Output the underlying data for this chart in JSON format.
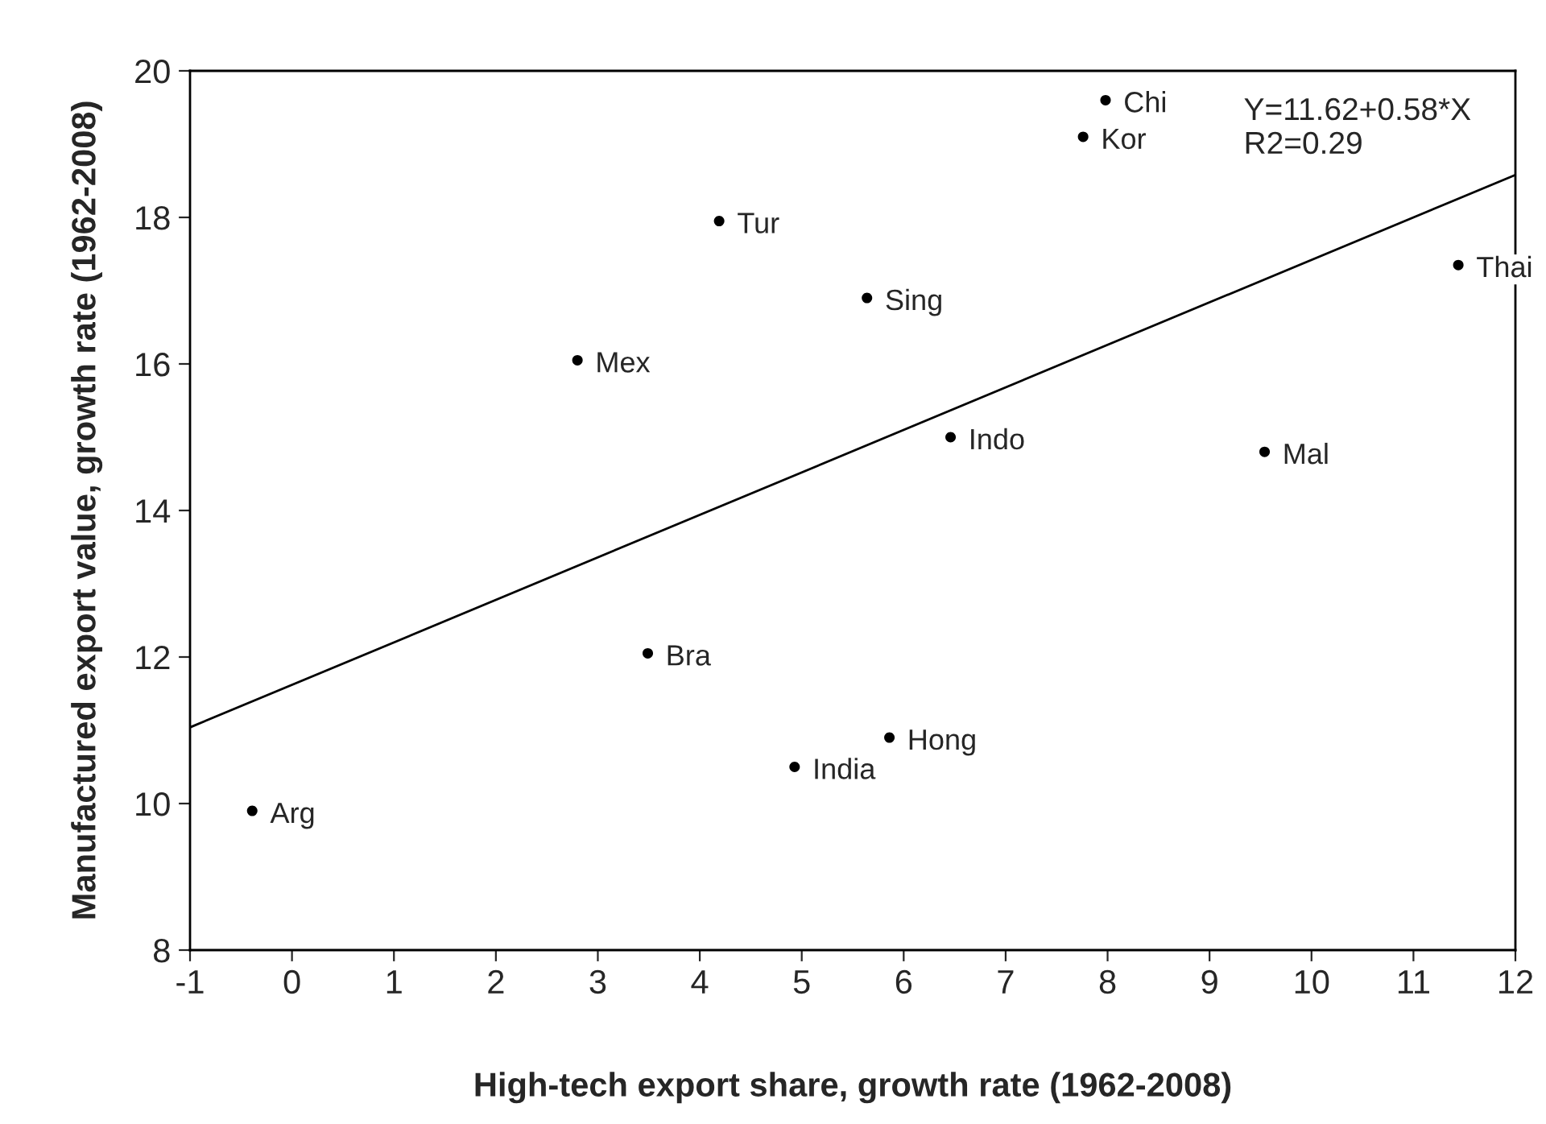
{
  "chart_data": {
    "type": "scatter",
    "xlabel": "High-tech export share, growth rate (1962-2008)",
    "ylabel": "Manufactured export value, growth rate (1962-2008)",
    "xlim": [
      -1,
      12
    ],
    "xticks": [
      -1,
      0,
      1,
      2,
      3,
      4,
      5,
      6,
      7,
      8,
      9,
      10,
      11,
      12
    ],
    "ylim": [
      8,
      20
    ],
    "yticks": [
      8,
      10,
      12,
      14,
      16,
      18,
      20
    ],
    "grid": false,
    "marker": "circle",
    "series": [
      {
        "color": "#000000",
        "x": [
          -0.39,
          3.49,
          4.93,
          5.86,
          2.8,
          4.19,
          5.64,
          6.46,
          7.98,
          7.76,
          9.54,
          11.44
        ],
        "values": [
          9.9,
          12.05,
          10.5,
          10.9,
          16.05,
          17.95,
          16.9,
          15.0,
          19.6,
          19.1,
          14.8,
          17.35
        ]
      },
      {
        "type": "line",
        "color": "#000000",
        "line_style": "solid",
        "marker": "none",
        "x": [
          -1,
          12
        ],
        "values": [
          11.04,
          18.58
        ]
      }
    ],
    "annotations": [
      {
        "text": "Arg",
        "x": -0.39,
        "y": 9.9
      },
      {
        "text": "Bra",
        "x": 3.49,
        "y": 12.05
      },
      {
        "text": "India",
        "x": 4.93,
        "y": 10.5
      },
      {
        "text": "Hong",
        "x": 5.86,
        "y": 10.9
      },
      {
        "text": "Mex",
        "x": 2.8,
        "y": 16.05
      },
      {
        "text": "Tur",
        "x": 4.19,
        "y": 17.95
      },
      {
        "text": "Sing",
        "x": 5.64,
        "y": 16.9
      },
      {
        "text": "Indo",
        "x": 6.46,
        "y": 15.0
      },
      {
        "text": "Chi",
        "x": 7.98,
        "y": 19.6
      },
      {
        "text": "Kor",
        "x": 7.76,
        "y": 19.1
      },
      {
        "text": "Mal",
        "x": 9.54,
        "y": 14.8
      },
      {
        "text": "Thai",
        "x": 11.44,
        "y": 17.35
      },
      "Y=11.62+0.58*X\nR2=0.29"
    ]
  }
}
